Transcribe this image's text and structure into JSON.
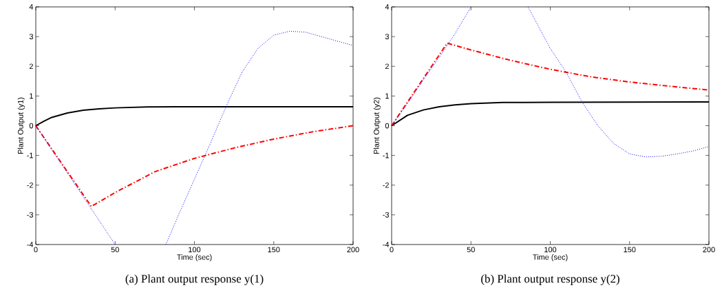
{
  "chart_data": [
    {
      "type": "line",
      "xlabel": "Time (sec)",
      "ylabel": "Plant Output (y1)",
      "annotations": [
        "(a) Plant output response y(1)"
      ],
      "xlim": [
        0,
        200
      ],
      "ylim": [
        -4,
        4
      ],
      "xticks": [
        0,
        50,
        100,
        150,
        200
      ],
      "yticks": [
        -4,
        -3,
        -2,
        -1,
        0,
        1,
        2,
        3,
        4
      ],
      "series": [
        {
          "color": "#000000",
          "line_style": "solid",
          "x": [
            0,
            5,
            10,
            20,
            30,
            40,
            50,
            70,
            100,
            200
          ],
          "values": [
            0,
            0.15,
            0.28,
            0.43,
            0.52,
            0.57,
            0.6,
            0.63,
            0.64,
            0.64
          ]
        },
        {
          "color": "#ff0000",
          "line_style": "dashdot",
          "x": [
            0,
            35,
            50,
            75,
            100,
            125,
            150,
            175,
            200
          ],
          "values": [
            0,
            -2.72,
            -2.25,
            -1.55,
            -1.1,
            -0.75,
            -0.45,
            -0.2,
            0
          ]
        },
        {
          "color": "#0000ff",
          "line_style": "dotted",
          "x": [
            0,
            10,
            20,
            30,
            40,
            50,
            66,
            82,
            90,
            100,
            110,
            120,
            130,
            140,
            150,
            160,
            170,
            180,
            190,
            200
          ],
          "values": [
            0,
            -0.8,
            -1.6,
            -2.4,
            -3.2,
            -4,
            null,
            -4,
            -3.0,
            -1.8,
            -0.6,
            0.65,
            1.8,
            2.6,
            3.05,
            3.18,
            3.15,
            3.0,
            2.85,
            2.7
          ]
        }
      ]
    },
    {
      "type": "line",
      "xlabel": "Time (sec)",
      "ylabel": "Plant Output (y2)",
      "annotations": [
        "(b) Plant output response y(2)"
      ],
      "xlim": [
        0,
        200
      ],
      "ylim": [
        -4,
        4
      ],
      "xticks": [
        0,
        50,
        100,
        150,
        200
      ],
      "yticks": [
        -4,
        -3,
        -2,
        -1,
        0,
        1,
        2,
        3,
        4
      ],
      "series": [
        {
          "color": "#000000",
          "line_style": "solid",
          "x": [
            0,
            10,
            20,
            30,
            40,
            50,
            70,
            100,
            200
          ],
          "values": [
            0,
            0.35,
            0.53,
            0.64,
            0.7,
            0.74,
            0.78,
            0.79,
            0.8
          ]
        },
        {
          "color": "#ff0000",
          "line_style": "dashdot",
          "x": [
            0,
            35,
            50,
            75,
            100,
            125,
            150,
            175,
            200
          ],
          "values": [
            0,
            2.78,
            2.55,
            2.2,
            1.9,
            1.65,
            1.47,
            1.33,
            1.2
          ]
        },
        {
          "color": "#0000ff",
          "line_style": "dotted",
          "x": [
            0,
            10,
            20,
            30,
            40,
            50,
            68,
            86,
            100,
            110,
            120,
            130,
            140,
            150,
            160,
            170,
            180,
            190,
            200
          ],
          "values": [
            0,
            0.75,
            1.55,
            2.3,
            3.1,
            4,
            null,
            4,
            2.6,
            1.8,
            0.8,
            0,
            -0.6,
            -0.95,
            -1.05,
            -1.03,
            -0.95,
            -0.85,
            -0.7
          ]
        }
      ]
    }
  ]
}
